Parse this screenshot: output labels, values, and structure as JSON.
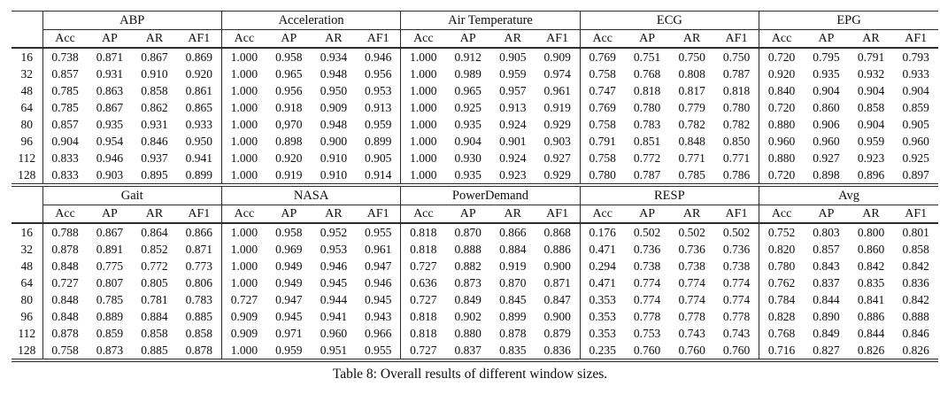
{
  "caption": "Table 8: Overall results of different window sizes.",
  "table": {
    "corner_label": "",
    "metrics": [
      "Acc",
      "AP",
      "AR",
      "AF1"
    ],
    "window_sizes": [
      "16",
      "32",
      "48",
      "64",
      "80",
      "96",
      "112",
      "128"
    ],
    "blocks": [
      {
        "groups": [
          {
            "name": "ABP",
            "rows": [
              [
                "0.738",
                "0.871",
                "0.867",
                "0.869"
              ],
              [
                "0.857",
                "0.931",
                "0.910",
                "0.920"
              ],
              [
                "0.785",
                "0.863",
                "0.858",
                "0.861"
              ],
              [
                "0.785",
                "0.867",
                "0.862",
                "0.865"
              ],
              [
                "0.857",
                "0.935",
                "0.931",
                "0.933"
              ],
              [
                "0.904",
                "0.954",
                "0.846",
                "0.950"
              ],
              [
                "0.833",
                "0.946",
                "0.937",
                "0.941"
              ],
              [
                "0.833",
                "0.903",
                "0.895",
                "0.899"
              ]
            ]
          },
          {
            "name": "Acceleration",
            "rows": [
              [
                "1.000",
                "0.958",
                "0.934",
                "0.946"
              ],
              [
                "1.000",
                "0.965",
                "0.948",
                "0.956"
              ],
              [
                "1.000",
                "0.956",
                "0.950",
                "0.953"
              ],
              [
                "1.000",
                "0.918",
                "0.909",
                "0.913"
              ],
              [
                "1.000",
                "0,970",
                "0.948",
                "0.959"
              ],
              [
                "1.000",
                "0.898",
                "0.900",
                "0.899"
              ],
              [
                "1.000",
                "0.920",
                "0.910",
                "0.905"
              ],
              [
                "1.000",
                "0.919",
                "0.910",
                "0.914"
              ]
            ]
          },
          {
            "name": "Air Temperature",
            "rows": [
              [
                "1.000",
                "0.912",
                "0.905",
                "0.909"
              ],
              [
                "1.000",
                "0.989",
                "0.959",
                "0.974"
              ],
              [
                "1.000",
                "0.965",
                "0.957",
                "0.961"
              ],
              [
                "1.000",
                "0.925",
                "0.913",
                "0.919"
              ],
              [
                "1.000",
                "0.935",
                "0.924",
                "0.929"
              ],
              [
                "1.000",
                "0.904",
                "0.901",
                "0.903"
              ],
              [
                "1.000",
                "0.930",
                "0.924",
                "0.927"
              ],
              [
                "1.000",
                "0.935",
                "0.923",
                "0.929"
              ]
            ]
          },
          {
            "name": "ECG",
            "rows": [
              [
                "0.769",
                "0.751",
                "0.750",
                "0.750"
              ],
              [
                "0.758",
                "0.768",
                "0.808",
                "0.787"
              ],
              [
                "0.747",
                "0.818",
                "0.817",
                "0.818"
              ],
              [
                "0.769",
                "0.780",
                "0.779",
                "0.780"
              ],
              [
                "0.758",
                "0.783",
                "0.782",
                "0.782"
              ],
              [
                "0.791",
                "0.851",
                "0.848",
                "0.850"
              ],
              [
                "0.758",
                "0.772",
                "0.771",
                "0.771"
              ],
              [
                "0.780",
                "0.787",
                "0.785",
                "0.786"
              ]
            ]
          },
          {
            "name": "EPG",
            "rows": [
              [
                "0.720",
                "0.795",
                "0.791",
                "0.793"
              ],
              [
                "0.920",
                "0.935",
                "0.932",
                "0.933"
              ],
              [
                "0.840",
                "0.904",
                "0.904",
                "0.904"
              ],
              [
                "0.720",
                "0.860",
                "0.858",
                "0.859"
              ],
              [
                "0.880",
                "0.906",
                "0.904",
                "0.905"
              ],
              [
                "0.960",
                "0.960",
                "0.959",
                "0.960"
              ],
              [
                "0.880",
                "0.927",
                "0.923",
                "0.925"
              ],
              [
                "0.720",
                "0.898",
                "0.896",
                "0.897"
              ]
            ]
          }
        ]
      },
      {
        "groups": [
          {
            "name": "Gait",
            "rows": [
              [
                "0.788",
                "0.867",
                "0.864",
                "0.866"
              ],
              [
                "0.878",
                "0.891",
                "0.852",
                "0.871"
              ],
              [
                "0.848",
                "0.775",
                "0.772",
                "0.773"
              ],
              [
                "0.727",
                "0.807",
                "0.805",
                "0.806"
              ],
              [
                "0.848",
                "0.785",
                "0.781",
                "0.783"
              ],
              [
                "0.848",
                "0.889",
                "0.884",
                "0.885"
              ],
              [
                "0.878",
                "0.859",
                "0.858",
                "0.858"
              ],
              [
                "0.758",
                "0.873",
                "0.885",
                "0.878"
              ]
            ]
          },
          {
            "name": "NASA",
            "rows": [
              [
                "1.000",
                "0.958",
                "0.952",
                "0.955"
              ],
              [
                "1.000",
                "0.969",
                "0.953",
                "0.961"
              ],
              [
                "1.000",
                "0.949",
                "0.946",
                "0.947"
              ],
              [
                "1.000",
                "0.949",
                "0.945",
                "0.946"
              ],
              [
                "0.727",
                "0.947",
                "0.944",
                "0.945"
              ],
              [
                "0.909",
                "0.945",
                "0.941",
                "0.943"
              ],
              [
                "0.909",
                "0.971",
                "0.960",
                "0.966"
              ],
              [
                "1.000",
                "0.959",
                "0.951",
                "0.955"
              ]
            ]
          },
          {
            "name": "PowerDemand",
            "rows": [
              [
                "0.818",
                "0.870",
                "0.866",
                "0.868"
              ],
              [
                "0.818",
                "0.888",
                "0.884",
                "0.886"
              ],
              [
                "0.727",
                "0.882",
                "0.919",
                "0.900"
              ],
              [
                "0.636",
                "0.873",
                "0.870",
                "0.871"
              ],
              [
                "0.727",
                "0.849",
                "0.845",
                "0.847"
              ],
              [
                "0.818",
                "0.902",
                "0.899",
                "0.900"
              ],
              [
                "0.818",
                "0.880",
                "0.878",
                "0.879"
              ],
              [
                "0.727",
                "0.837",
                "0.835",
                "0.836"
              ]
            ]
          },
          {
            "name": "RESP",
            "rows": [
              [
                "0.176",
                "0.502",
                "0.502",
                "0.502"
              ],
              [
                "0.471",
                "0.736",
                "0.736",
                "0.736"
              ],
              [
                "0.294",
                "0.738",
                "0.738",
                "0.738"
              ],
              [
                "0.471",
                "0.774",
                "0.774",
                "0.774"
              ],
              [
                "0.353",
                "0.774",
                "0.774",
                "0.774"
              ],
              [
                "0.353",
                "0.778",
                "0.778",
                "0.778"
              ],
              [
                "0.353",
                "0.753",
                "0.743",
                "0.743"
              ],
              [
                "0.235",
                "0.760",
                "0.760",
                "0.760"
              ]
            ]
          },
          {
            "name": "Avg",
            "rows": [
              [
                "0.752",
                "0.803",
                "0.800",
                "0.801"
              ],
              [
                "0.820",
                "0.857",
                "0.860",
                "0.858"
              ],
              [
                "0.780",
                "0.843",
                "0.842",
                "0.842"
              ],
              [
                "0.762",
                "0.837",
                "0.835",
                "0.836"
              ],
              [
                "0.784",
                "0.844",
                "0.841",
                "0.842"
              ],
              [
                "0.828",
                "0.890",
                "0.886",
                "0.888"
              ],
              [
                "0.768",
                "0.849",
                "0.844",
                "0.846"
              ],
              [
                "0.716",
                "0.827",
                "0.826",
                "0.826"
              ]
            ]
          }
        ]
      }
    ]
  }
}
